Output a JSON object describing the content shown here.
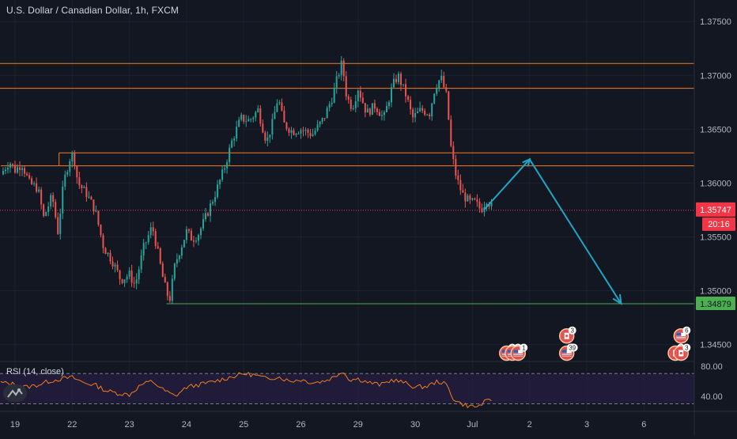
{
  "header": {
    "title": "U.S. Dollar / Canadian Dollar, 1h, FXCM"
  },
  "chart_data": {
    "type": "candlestick",
    "title": "U.S. Dollar / Canadian Dollar, 1h, FXCM",
    "ylim": [
      1.3435,
      1.377
    ],
    "y_ticks": [
      {
        "value": 1.375,
        "label": "1.37500"
      },
      {
        "value": 1.37,
        "label": "1.37000"
      },
      {
        "value": 1.365,
        "label": "1.36500"
      },
      {
        "value": 1.36,
        "label": "1.36000"
      },
      {
        "value": 1.355,
        "label": "1.35500"
      },
      {
        "value": 1.35,
        "label": "1.35000"
      },
      {
        "value": 1.345,
        "label": "1.34500"
      }
    ],
    "x_ticks": [
      {
        "day": 0,
        "label": "19"
      },
      {
        "day": 1,
        "label": "22"
      },
      {
        "day": 2,
        "label": "23"
      },
      {
        "day": 3,
        "label": "24"
      },
      {
        "day": 4,
        "label": "25"
      },
      {
        "day": 5,
        "label": "26"
      },
      {
        "day": 6,
        "label": "29"
      },
      {
        "day": 7,
        "label": "30"
      },
      {
        "day": 8,
        "label": "Jul"
      },
      {
        "day": 9,
        "label": "2"
      },
      {
        "day": 10,
        "label": "3"
      },
      {
        "day": 11,
        "label": "6"
      }
    ],
    "price_path": [
      [
        -0.25,
        1.3608
      ],
      [
        -0.1,
        1.362
      ],
      [
        0.0,
        1.3612
      ],
      [
        0.12,
        1.3618
      ],
      [
        0.25,
        1.36
      ],
      [
        0.4,
        1.3595
      ],
      [
        0.5,
        1.3568
      ],
      [
        0.65,
        1.3588
      ],
      [
        0.75,
        1.3555
      ],
      [
        0.85,
        1.36
      ],
      [
        0.95,
        1.3622
      ],
      [
        1.02,
        1.3628
      ],
      [
        1.1,
        1.36
      ],
      [
        1.25,
        1.359
      ],
      [
        1.4,
        1.3575
      ],
      [
        1.55,
        1.354
      ],
      [
        1.7,
        1.3528
      ],
      [
        1.85,
        1.351
      ],
      [
        2.0,
        1.3515
      ],
      [
        2.1,
        1.3505
      ],
      [
        2.25,
        1.354
      ],
      [
        2.4,
        1.356
      ],
      [
        2.5,
        1.3535
      ],
      [
        2.6,
        1.3508
      ],
      [
        2.7,
        1.349
      ],
      [
        2.8,
        1.3525
      ],
      [
        2.9,
        1.354
      ],
      [
        3.0,
        1.3555
      ],
      [
        3.1,
        1.3548
      ],
      [
        3.2,
        1.3552
      ],
      [
        3.35,
        1.357
      ],
      [
        3.5,
        1.359
      ],
      [
        3.65,
        1.3612
      ],
      [
        3.8,
        1.364
      ],
      [
        3.95,
        1.366
      ],
      [
        4.1,
        1.3658
      ],
      [
        4.25,
        1.3668
      ],
      [
        4.4,
        1.3638
      ],
      [
        4.5,
        1.3655
      ],
      [
        4.6,
        1.368
      ],
      [
        4.7,
        1.3655
      ],
      [
        4.85,
        1.3648
      ],
      [
        5.0,
        1.365
      ],
      [
        5.2,
        1.3645
      ],
      [
        5.4,
        1.366
      ],
      [
        5.55,
        1.368
      ],
      [
        5.65,
        1.37
      ],
      [
        5.72,
        1.3712
      ],
      [
        5.8,
        1.368
      ],
      [
        5.9,
        1.367
      ],
      [
        6.0,
        1.3688
      ],
      [
        6.15,
        1.3665
      ],
      [
        6.3,
        1.3672
      ],
      [
        6.45,
        1.366
      ],
      [
        6.6,
        1.369
      ],
      [
        6.7,
        1.37
      ],
      [
        6.85,
        1.368
      ],
      [
        6.95,
        1.366
      ],
      [
        7.1,
        1.3668
      ],
      [
        7.25,
        1.3665
      ],
      [
        7.35,
        1.369
      ],
      [
        7.45,
        1.3698
      ],
      [
        7.55,
        1.368
      ],
      [
        7.63,
        1.363
      ],
      [
        7.72,
        1.3605
      ],
      [
        7.82,
        1.359
      ],
      [
        7.95,
        1.3582
      ],
      [
        8.05,
        1.3582
      ],
      [
        8.15,
        1.3575
      ],
      [
        8.25,
        1.3585
      ],
      [
        8.35,
        1.3577
      ]
    ],
    "levels": [
      {
        "name": "resistance-upper-top",
        "value": 1.3711,
        "color": "#f57c1f"
      },
      {
        "name": "resistance-upper-bottom",
        "value": 1.3688,
        "color": "#f57c1f"
      },
      {
        "name": "resistance-lower-top",
        "value": 1.3628,
        "color": "#f57c1f"
      },
      {
        "name": "resistance-lower-bottom",
        "value": 1.3616,
        "color": "#f57c1f"
      },
      {
        "name": "current-price",
        "value": 1.35747,
        "color": "#f23645",
        "dotted": true
      },
      {
        "name": "target",
        "value": 1.34879,
        "color": "#4caf50"
      }
    ],
    "projection": [
      {
        "day": 8.2,
        "price": 1.3575
      },
      {
        "day": 9.0,
        "price": 1.3622
      },
      {
        "day": 10.6,
        "price": 1.3488
      }
    ],
    "price_labels": {
      "current": "1.35747",
      "countdown": "20:16",
      "target": "1.34879"
    },
    "events": [
      {
        "day": 8.6,
        "y": 1.3442,
        "flag": "us",
        "badge": "8"
      },
      {
        "day": 8.7,
        "y": 1.3442,
        "flag": "us",
        "badge": "3"
      },
      {
        "day": 8.8,
        "y": 1.3442,
        "flag": "us",
        "badge": "1"
      },
      {
        "day": 9.65,
        "y": 1.3458,
        "flag": "ca",
        "badge": "3"
      },
      {
        "day": 9.65,
        "y": 1.3442,
        "flag": "us",
        "badge": "39"
      },
      {
        "day": 11.65,
        "y": 1.3458,
        "flag": "us",
        "badge": "6"
      },
      {
        "day": 11.55,
        "y": 1.3442,
        "flag": "ca",
        "badge": "2"
      },
      {
        "day": 11.65,
        "y": 1.3442,
        "flag": "ca",
        "badge": "3"
      }
    ],
    "rsi": {
      "label": "RSI (14, close)",
      "ylim": [
        20,
        85
      ],
      "upper": 70,
      "lower": 30,
      "ticks": [
        {
          "value": 80,
          "label": "80.00"
        },
        {
          "value": 40,
          "label": "40.00"
        }
      ],
      "values": [
        [
          -0.25,
          58
        ],
        [
          0.0,
          56
        ],
        [
          0.2,
          52
        ],
        [
          0.4,
          55
        ],
        [
          0.6,
          60
        ],
        [
          0.8,
          63
        ],
        [
          1.0,
          65
        ],
        [
          1.2,
          58
        ],
        [
          1.4,
          55
        ],
        [
          1.6,
          47
        ],
        [
          1.8,
          44
        ],
        [
          2.0,
          42
        ],
        [
          2.2,
          55
        ],
        [
          2.4,
          60
        ],
        [
          2.6,
          48
        ],
        [
          2.8,
          40
        ],
        [
          3.0,
          52
        ],
        [
          3.2,
          55
        ],
        [
          3.4,
          58
        ],
        [
          3.6,
          62
        ],
        [
          3.8,
          66
        ],
        [
          4.0,
          70
        ],
        [
          4.2,
          68
        ],
        [
          4.4,
          63
        ],
        [
          4.6,
          66
        ],
        [
          4.8,
          60
        ],
        [
          5.0,
          62
        ],
        [
          5.2,
          58
        ],
        [
          5.4,
          60
        ],
        [
          5.6,
          66
        ],
        [
          5.72,
          74
        ],
        [
          5.85,
          62
        ],
        [
          6.0,
          63
        ],
        [
          6.2,
          58
        ],
        [
          6.4,
          55
        ],
        [
          6.6,
          62
        ],
        [
          6.8,
          58
        ],
        [
          7.0,
          52
        ],
        [
          7.2,
          53
        ],
        [
          7.4,
          60
        ],
        [
          7.55,
          55
        ],
        [
          7.65,
          38
        ],
        [
          7.8,
          30
        ],
        [
          7.95,
          27
        ],
        [
          8.1,
          26
        ],
        [
          8.2,
          32
        ],
        [
          8.35,
          35
        ]
      ]
    }
  }
}
